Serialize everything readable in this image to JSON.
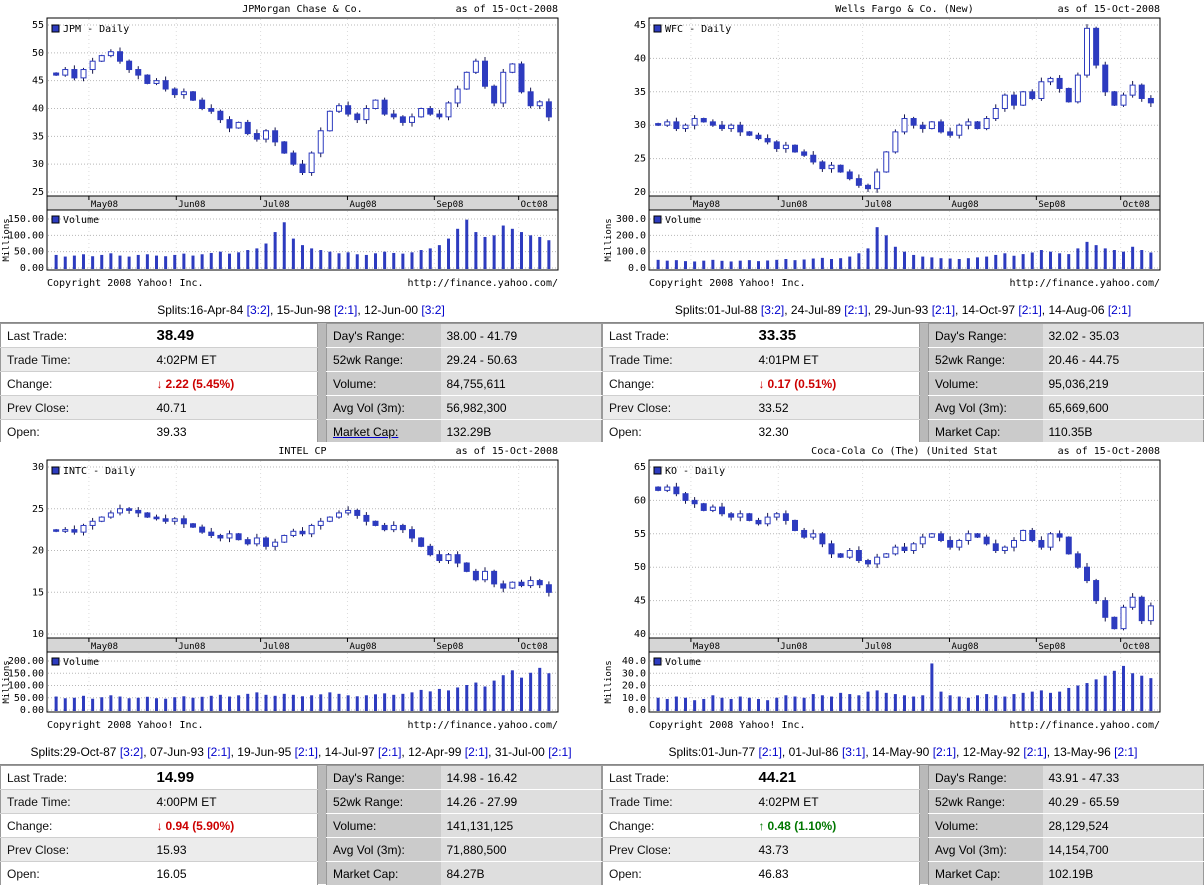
{
  "shared": {
    "as_of": "as of 15-Oct-2008",
    "footer": {
      "copyright": "Copyright 2008 Yahoo! Inc.",
      "url": "http://finance.yahoo.com/"
    },
    "labels": {
      "last_trade": "Last Trade:",
      "trade_time": "Trade Time:",
      "change": "Change:",
      "prev_close": "Prev Close:",
      "open": "Open:",
      "days_range": "Day's Range:",
      "wk52_range": "52wk Range:",
      "volume": "Volume:",
      "avg_vol": "Avg Vol (3m):",
      "market_cap": "Market Cap:"
    },
    "colors": {
      "series": "#2d3bbf",
      "negative": "#cc0000",
      "positive": "#007700",
      "band": "#d6d6d6",
      "gridline": "#b8b8b8",
      "link": "#0000cc"
    }
  },
  "chart_data": [
    {
      "type": "candlestick+volume",
      "title": "JPMorgan Chase & Co.",
      "legend": "JPM - Daily",
      "volume_legend": "Volume",
      "millions_label": "Millions",
      "x_ticks": [
        "May08",
        "Jun08",
        "Jul08",
        "Aug08",
        "Sep08",
        "Oct08"
      ],
      "price_axis": {
        "min": 25,
        "max": 55,
        "ticks": [
          "55",
          "50",
          "45",
          "40",
          "35",
          "30",
          "25"
        ]
      },
      "volume_axis": {
        "max": 150,
        "ticks": [
          "150.00",
          "100.00",
          "50.00",
          "0.00"
        ]
      },
      "prices": [
        46,
        47,
        45.5,
        47,
        48.5,
        49.5,
        50.2,
        48.5,
        47,
        46,
        44.5,
        45,
        43.5,
        42.5,
        43,
        41.5,
        40,
        39.5,
        38,
        36.5,
        37.5,
        35.5,
        34.5,
        36,
        34,
        32,
        30,
        28.5,
        32,
        36,
        39.5,
        40.5,
        39,
        38,
        40,
        41.5,
        39,
        38.5,
        37.5,
        38.5,
        40,
        39,
        38.5,
        41,
        43.5,
        46.5,
        48.5,
        44,
        41,
        46.5,
        48,
        43,
        40.5,
        41.2,
        38.49
      ],
      "volumes": [
        40,
        35,
        38,
        42,
        36,
        40,
        45,
        38,
        35,
        40,
        42,
        38,
        36,
        40,
        44,
        38,
        42,
        46,
        50,
        44,
        48,
        55,
        60,
        75,
        110,
        140,
        90,
        70,
        60,
        55,
        50,
        45,
        48,
        42,
        40,
        45,
        50,
        46,
        44,
        48,
        55,
        60,
        70,
        90,
        120,
        148,
        110,
        95,
        100,
        130,
        120,
        110,
        100,
        95,
        85
      ],
      "splits": {
        "prefix": "Splits:",
        "items": [
          {
            "date": "16-Apr-84",
            "ratio": "[3:2]"
          },
          {
            "date": "15-Jun-98",
            "ratio": "[2:1]"
          },
          {
            "date": "12-Jun-00",
            "ratio": "[3:2]"
          }
        ]
      },
      "quote": {
        "last_trade": "38.49",
        "trade_time": "4:02PM ET",
        "change": {
          "direction": "down",
          "arrow": "↓",
          "text": "2.22 (5.45%)"
        },
        "prev_close": "40.71",
        "open": "39.33",
        "days_range": "38.00 - 41.79",
        "wk52_range": "29.24 - 50.63",
        "volume": "84,755,611",
        "avg_vol": "56,982,300",
        "market_cap": "132.29B"
      }
    },
    {
      "type": "candlestick+volume",
      "title": "Wells Fargo & Co. (New)",
      "legend": "WFC - Daily",
      "volume_legend": "Volume",
      "millions_label": "Millions",
      "x_ticks": [
        "May08",
        "Jun08",
        "Jul08",
        "Aug08",
        "Sep08",
        "Oct08"
      ],
      "price_axis": {
        "min": 20,
        "max": 45,
        "ticks": [
          "45",
          "40",
          "35",
          "30",
          "25",
          "20"
        ]
      },
      "volume_axis": {
        "max": 300,
        "ticks": [
          "300.0",
          "200.0",
          "100.0",
          "0.0"
        ]
      },
      "prices": [
        30,
        30.5,
        29.5,
        30,
        31,
        30.5,
        30,
        29.5,
        30,
        29,
        28.5,
        28,
        27.5,
        26.5,
        27,
        26,
        25.5,
        24.5,
        23.5,
        24,
        23,
        22,
        21,
        20.5,
        23,
        26,
        29,
        31,
        30,
        29.5,
        30.5,
        29,
        28.5,
        30,
        30.5,
        29.5,
        31,
        32.5,
        34.5,
        33,
        35,
        34,
        36.5,
        37,
        35.5,
        33.5,
        37.5,
        44.5,
        39,
        35,
        33,
        34.5,
        36,
        34,
        33.35
      ],
      "volumes": [
        50,
        45,
        48,
        42,
        40,
        45,
        50,
        44,
        40,
        45,
        48,
        42,
        46,
        50,
        55,
        48,
        52,
        58,
        62,
        55,
        60,
        70,
        90,
        120,
        250,
        200,
        130,
        100,
        80,
        70,
        65,
        60,
        58,
        55,
        60,
        65,
        70,
        80,
        90,
        75,
        85,
        95,
        110,
        100,
        90,
        85,
        120,
        160,
        140,
        120,
        110,
        100,
        130,
        110,
        95
      ],
      "splits": {
        "prefix": "Splits:",
        "items": [
          {
            "date": "01-Jul-88",
            "ratio": "[3:2]"
          },
          {
            "date": "24-Jul-89",
            "ratio": "[2:1]"
          },
          {
            "date": "29-Jun-93",
            "ratio": "[2:1]"
          },
          {
            "date": "14-Oct-97",
            "ratio": "[2:1]"
          },
          {
            "date": "14-Aug-06",
            "ratio": "[2:1]"
          }
        ]
      },
      "quote": {
        "last_trade": "33.35",
        "trade_time": "4:01PM ET",
        "change": {
          "direction": "down",
          "arrow": "↓",
          "text": "0.17 (0.51%)"
        },
        "prev_close": "33.52",
        "open": "32.30",
        "days_range": "32.02 - 35.03",
        "wk52_range": "20.46 - 44.75",
        "volume": "95,036,219",
        "avg_vol": "65,669,600",
        "market_cap": "110.35B"
      }
    },
    {
      "type": "candlestick+volume",
      "title": "INTEL CP",
      "legend": "INTC - Daily",
      "volume_legend": "Volume",
      "millions_label": "Millions",
      "x_ticks": [
        "May08",
        "Jun08",
        "Jul08",
        "Aug08",
        "Sep08",
        "Oct08"
      ],
      "price_axis": {
        "min": 10,
        "max": 30,
        "ticks": [
          "30",
          "25",
          "20",
          "15",
          "10"
        ]
      },
      "volume_axis": {
        "max": 200,
        "ticks": [
          "200.00",
          "150.00",
          "100.00",
          "50.00",
          "0.00"
        ]
      },
      "prices": [
        22.3,
        22.5,
        22.2,
        23,
        23.5,
        24,
        24.5,
        25,
        24.8,
        24.5,
        24,
        23.8,
        23.5,
        23.8,
        23.2,
        22.8,
        22.2,
        21.8,
        21.5,
        22,
        21.3,
        20.8,
        21.5,
        20.5,
        21,
        21.8,
        22.3,
        22,
        23,
        23.5,
        24,
        24.5,
        24.8,
        24.2,
        23.5,
        23,
        22.5,
        23,
        22.5,
        21.5,
        20.5,
        19.5,
        18.8,
        19.5,
        18.5,
        17.5,
        16.5,
        17.5,
        16,
        15.5,
        16.2,
        15.8,
        16.4,
        15.9,
        14.99
      ],
      "volumes": [
        55,
        48,
        50,
        58,
        46,
        52,
        60,
        55,
        48,
        50,
        54,
        48,
        46,
        52,
        56,
        50,
        54,
        58,
        62,
        55,
        60,
        66,
        72,
        62,
        58,
        66,
        62,
        56,
        60,
        64,
        72,
        66,
        60,
        56,
        60,
        64,
        68,
        62,
        66,
        72,
        82,
        76,
        86,
        80,
        92,
        102,
        112,
        96,
        120,
        142,
        162,
        132,
        152,
        172,
        150
      ],
      "splits": {
        "prefix": "Splits:",
        "items": [
          {
            "date": "29-Oct-87",
            "ratio": "[3:2]"
          },
          {
            "date": "07-Jun-93",
            "ratio": "[2:1]"
          },
          {
            "date": "19-Jun-95",
            "ratio": "[2:1]"
          },
          {
            "date": "14-Jul-97",
            "ratio": "[2:1]"
          },
          {
            "date": "12-Apr-99",
            "ratio": "[2:1]"
          },
          {
            "date": "31-Jul-00",
            "ratio": "[2:1]"
          }
        ]
      },
      "quote": {
        "last_trade": "14.99",
        "trade_time": "4:00PM ET",
        "change": {
          "direction": "down",
          "arrow": "↓",
          "text": "0.94 (5.90%)"
        },
        "prev_close": "15.93",
        "open": "16.05",
        "days_range": "14.98 - 16.42",
        "wk52_range": "14.26 - 27.99",
        "volume": "141,131,125",
        "avg_vol": "71,880,500",
        "market_cap": "84.27B"
      }
    },
    {
      "type": "candlestick+volume",
      "title": "Coca-Cola Co (The) (United Stat",
      "legend": "KO - Daily",
      "volume_legend": "Volume",
      "millions_label": "Millions",
      "x_ticks": [
        "May08",
        "Jun08",
        "Jul08",
        "Aug08",
        "Sep08",
        "Oct08"
      ],
      "price_axis": {
        "min": 40,
        "max": 65,
        "ticks": [
          "65",
          "60",
          "55",
          "50",
          "45",
          "40"
        ]
      },
      "volume_axis": {
        "max": 40,
        "ticks": [
          "40.0",
          "30.0",
          "20.0",
          "10.0",
          "0.0"
        ]
      },
      "prices": [
        61.5,
        62,
        61,
        60,
        59.5,
        58.5,
        59,
        58,
        57.5,
        58,
        57,
        56.5,
        57.5,
        58,
        57,
        55.5,
        54.5,
        55,
        53.5,
        52,
        51.5,
        52.5,
        51,
        50.5,
        51.5,
        52,
        53,
        52.5,
        53.5,
        54.5,
        55,
        54,
        53,
        54,
        55,
        54.5,
        53.5,
        52.5,
        53,
        54,
        55.5,
        54,
        53,
        55,
        54.5,
        52,
        50,
        48,
        45,
        42.5,
        40.8,
        44,
        45.5,
        42,
        44.21
      ],
      "volumes": [
        10,
        9,
        11,
        10,
        8,
        9,
        12,
        10,
        9,
        11,
        10,
        9,
        8,
        10,
        12,
        11,
        10,
        13,
        12,
        11,
        14,
        13,
        12,
        15,
        16,
        14,
        13,
        12,
        11,
        12,
        38,
        15,
        12,
        11,
        10,
        12,
        13,
        12,
        11,
        13,
        14,
        15,
        16,
        14,
        15,
        18,
        20,
        22,
        25,
        28,
        32,
        36,
        30,
        28,
        26
      ],
      "splits": {
        "prefix": "Splits:",
        "items": [
          {
            "date": "01-Jun-77",
            "ratio": "[2:1]"
          },
          {
            "date": "01-Jul-86",
            "ratio": "[3:1]"
          },
          {
            "date": "14-May-90",
            "ratio": "[2:1]"
          },
          {
            "date": "12-May-92",
            "ratio": "[2:1]"
          },
          {
            "date": "13-May-96",
            "ratio": "[2:1]"
          }
        ]
      },
      "quote": {
        "last_trade": "44.21",
        "trade_time": "4:02PM ET",
        "change": {
          "direction": "up",
          "arrow": "↑",
          "text": "0.48 (1.10%)"
        },
        "prev_close": "43.73",
        "open": "46.83",
        "days_range": "43.91 - 47.33",
        "wk52_range": "40.29 - 65.59",
        "volume": "28,129,524",
        "avg_vol": "14,154,700",
        "market_cap": "102.19B"
      }
    }
  ]
}
